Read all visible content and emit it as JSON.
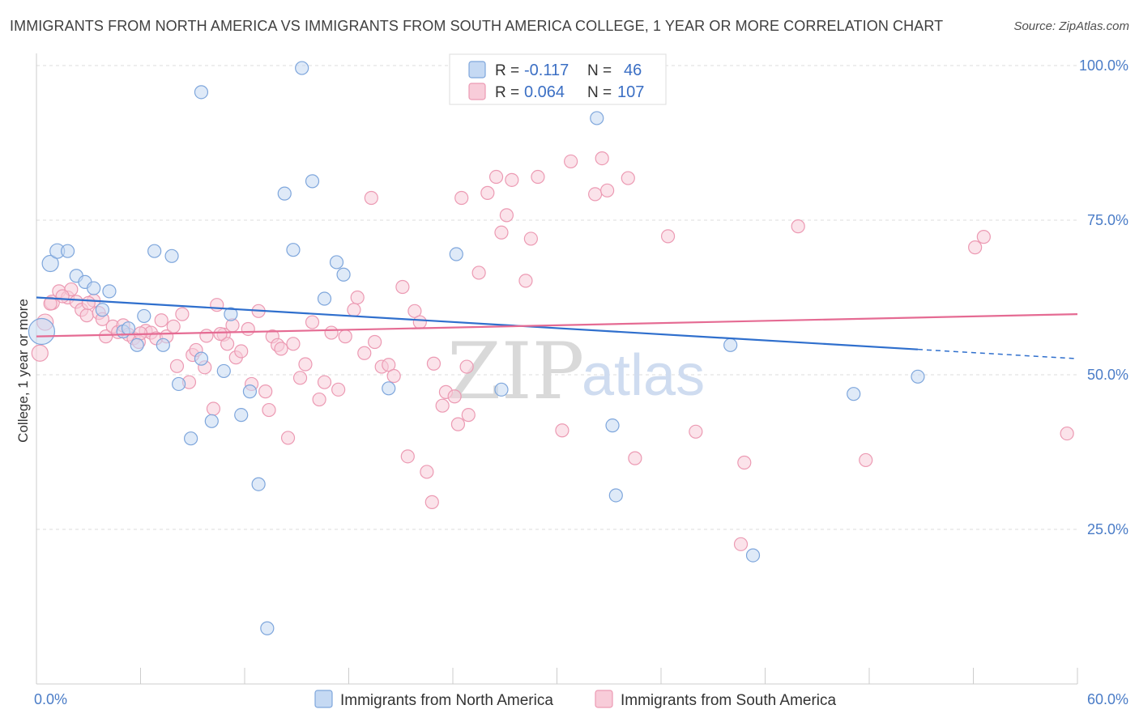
{
  "header": {
    "title": "IMMIGRANTS FROM NORTH AMERICA VS IMMIGRANTS FROM SOUTH AMERICA COLLEGE, 1 YEAR OR MORE CORRELATION CHART",
    "source": "Source: ZipAtlas.com"
  },
  "watermark": {
    "zip": "ZIP",
    "atlas": "atlas"
  },
  "colors": {
    "north_fill": "#c5d9f3",
    "north_stroke": "#7ea6dc",
    "north_line": "#2f6fcd",
    "south_fill": "#f8ccd9",
    "south_stroke": "#ec9ab3",
    "south_line": "#e56b93",
    "tick_label": "#4a7cc7",
    "grid": "#dedede"
  },
  "legend": {
    "rows": [
      {
        "r_label": "R =",
        "r_value": "-0.117",
        "n_label": "N =",
        "n_value": "46"
      },
      {
        "r_label": "R =",
        "r_value": "0.064",
        "n_label": "N =",
        "n_value": "107"
      }
    ]
  },
  "chart_data": {
    "type": "scatter",
    "title": "IMMIGRANTS FROM NORTH AMERICA VS IMMIGRANTS FROM SOUTH AMERICA COLLEGE, 1 YEAR OR MORE CORRELATION CHART",
    "xlabel": "",
    "ylabel": "College, 1 year or more",
    "xlim": [
      0,
      60
    ],
    "ylim": [
      0,
      102
    ],
    "x_tick_labels": [
      "0.0%",
      "60.0%"
    ],
    "y_ticks": [
      25,
      50,
      75,
      100
    ],
    "y_tick_labels": [
      "25.0%",
      "50.0%",
      "75.0%",
      "100.0%"
    ],
    "grid": true,
    "legend_position": "top-center",
    "series": [
      {
        "name": "Immigrants from North America",
        "r": -0.117,
        "n": 46,
        "trend": {
          "x": [
            0,
            50.8
          ],
          "y": [
            62.5,
            54.1
          ],
          "dashed_to": [
            60,
            52.6
          ]
        },
        "points": [
          [
            0.3,
            57.0,
            16
          ],
          [
            0.8,
            68.0,
            10
          ],
          [
            1.2,
            70.0,
            9
          ],
          [
            1.8,
            70.0,
            8
          ],
          [
            2.3,
            66.0,
            8
          ],
          [
            2.8,
            65.0,
            8
          ],
          [
            3.3,
            64.0,
            8
          ],
          [
            3.8,
            60.5,
            8
          ],
          [
            4.2,
            63.5,
            8
          ],
          [
            5.0,
            57.0,
            8
          ],
          [
            5.3,
            57.5,
            8
          ],
          [
            5.8,
            54.8,
            8
          ],
          [
            6.2,
            59.5,
            8
          ],
          [
            6.8,
            70.0,
            8
          ],
          [
            7.3,
            54.8,
            8
          ],
          [
            7.8,
            69.2,
            8
          ],
          [
            8.2,
            48.5,
            8
          ],
          [
            8.9,
            39.7,
            8
          ],
          [
            9.5,
            95.7,
            8
          ],
          [
            9.5,
            52.6,
            8
          ],
          [
            10.1,
            42.5,
            8
          ],
          [
            10.8,
            50.6,
            8
          ],
          [
            11.2,
            59.8,
            8
          ],
          [
            11.8,
            43.5,
            8
          ],
          [
            12.3,
            47.3,
            8
          ],
          [
            12.8,
            32.3,
            8
          ],
          [
            13.3,
            9.0,
            8
          ],
          [
            14.3,
            79.3,
            8
          ],
          [
            14.8,
            70.2,
            8
          ],
          [
            15.3,
            99.6,
            8
          ],
          [
            15.9,
            81.3,
            8
          ],
          [
            16.6,
            62.3,
            8
          ],
          [
            17.3,
            68.2,
            8
          ],
          [
            17.7,
            66.2,
            8
          ],
          [
            20.3,
            47.8,
            8
          ],
          [
            24.2,
            69.5,
            8
          ],
          [
            26.8,
            47.6,
            8
          ],
          [
            28.4,
            99.6,
            8
          ],
          [
            33.2,
            99.6,
            8
          ],
          [
            32.3,
            91.5,
            8
          ],
          [
            33.2,
            41.8,
            8
          ],
          [
            33.4,
            30.5,
            8
          ],
          [
            40.0,
            54.8,
            8
          ],
          [
            41.3,
            20.8,
            8
          ],
          [
            47.1,
            46.9,
            8
          ],
          [
            50.8,
            49.7,
            8
          ]
        ]
      },
      {
        "name": "Immigrants from South America",
        "r": 0.064,
        "n": 107,
        "trend": {
          "x": [
            0,
            60
          ],
          "y": [
            56.2,
            59.8
          ]
        },
        "points": [
          [
            0.2,
            53.5,
            10
          ],
          [
            0.5,
            58.5,
            10
          ],
          [
            0.9,
            61.7,
            9
          ],
          [
            1.3,
            63.5,
            8
          ],
          [
            1.8,
            62.5,
            8
          ],
          [
            2.0,
            63.8,
            8
          ],
          [
            2.3,
            61.8,
            8
          ],
          [
            2.6,
            60.5,
            8
          ],
          [
            2.9,
            59.6,
            8
          ],
          [
            3.3,
            62.0,
            8
          ],
          [
            3.6,
            60.0,
            8
          ],
          [
            3.8,
            59.0,
            8
          ],
          [
            4.0,
            56.2,
            8
          ],
          [
            4.4,
            57.8,
            8
          ],
          [
            4.7,
            56.9,
            8
          ],
          [
            5.0,
            58.0,
            8
          ],
          [
            5.3,
            56.5,
            8
          ],
          [
            5.6,
            55.9,
            8
          ],
          [
            5.9,
            55.3,
            8
          ],
          [
            6.3,
            57.1,
            8
          ],
          [
            6.6,
            56.8,
            8
          ],
          [
            6.9,
            55.9,
            8
          ],
          [
            7.2,
            58.8,
            8
          ],
          [
            7.5,
            56.2,
            8
          ],
          [
            7.9,
            57.8,
            8
          ],
          [
            8.1,
            51.4,
            8
          ],
          [
            8.4,
            59.8,
            8
          ],
          [
            8.8,
            48.8,
            8
          ],
          [
            9.0,
            53.2,
            8
          ],
          [
            9.2,
            54.0,
            8
          ],
          [
            9.7,
            51.2,
            8
          ],
          [
            9.8,
            56.3,
            8
          ],
          [
            10.2,
            44.5,
            8
          ],
          [
            10.4,
            61.3,
            8
          ],
          [
            10.8,
            56.5,
            8
          ],
          [
            11.0,
            55.0,
            8
          ],
          [
            11.3,
            58.0,
            8
          ],
          [
            11.5,
            52.8,
            8
          ],
          [
            11.8,
            53.8,
            8
          ],
          [
            12.2,
            57.4,
            8
          ],
          [
            12.4,
            48.5,
            8
          ],
          [
            12.8,
            60.3,
            8
          ],
          [
            13.2,
            47.3,
            8
          ],
          [
            13.4,
            44.3,
            8
          ],
          [
            13.6,
            56.2,
            8
          ],
          [
            13.9,
            54.8,
            8
          ],
          [
            14.1,
            54.2,
            8
          ],
          [
            14.5,
            39.8,
            8
          ],
          [
            14.8,
            55.0,
            8
          ],
          [
            15.2,
            49.5,
            8
          ],
          [
            15.5,
            51.7,
            8
          ],
          [
            15.9,
            58.5,
            8
          ],
          [
            16.3,
            46.0,
            8
          ],
          [
            16.6,
            48.8,
            8
          ],
          [
            17.0,
            56.8,
            8
          ],
          [
            17.4,
            47.6,
            8
          ],
          [
            17.8,
            56.2,
            8
          ],
          [
            18.3,
            60.5,
            8
          ],
          [
            18.5,
            62.5,
            8
          ],
          [
            18.9,
            53.5,
            8
          ],
          [
            19.3,
            78.6,
            8
          ],
          [
            19.5,
            55.3,
            8
          ],
          [
            19.9,
            51.3,
            8
          ],
          [
            20.3,
            51.6,
            8
          ],
          [
            20.6,
            49.8,
            8
          ],
          [
            21.1,
            64.2,
            8
          ],
          [
            21.4,
            36.8,
            8
          ],
          [
            21.8,
            60.3,
            8
          ],
          [
            22.1,
            58.5,
            8
          ],
          [
            22.5,
            34.3,
            8
          ],
          [
            22.8,
            29.4,
            8
          ],
          [
            22.9,
            51.8,
            8
          ],
          [
            23.4,
            45.0,
            8
          ],
          [
            23.6,
            47.2,
            8
          ],
          [
            24.1,
            46.5,
            8
          ],
          [
            24.3,
            42.0,
            8
          ],
          [
            24.5,
            78.6,
            8
          ],
          [
            24.8,
            51.3,
            8
          ],
          [
            24.9,
            43.5,
            8
          ],
          [
            25.5,
            66.5,
            8
          ],
          [
            26.0,
            79.4,
            8
          ],
          [
            26.5,
            82.0,
            8
          ],
          [
            26.8,
            73.0,
            8
          ],
          [
            27.1,
            75.8,
            8
          ],
          [
            27.4,
            81.5,
            8
          ],
          [
            28.2,
            65.2,
            8
          ],
          [
            28.5,
            72.0,
            8
          ],
          [
            28.9,
            82.0,
            8
          ],
          [
            30.3,
            41.0,
            8
          ],
          [
            30.8,
            84.5,
            8
          ],
          [
            32.2,
            79.2,
            8
          ],
          [
            32.6,
            85.0,
            8
          ],
          [
            32.9,
            79.8,
            8
          ],
          [
            34.1,
            81.8,
            8
          ],
          [
            34.5,
            36.5,
            8
          ],
          [
            36.4,
            72.4,
            8
          ],
          [
            38.0,
            40.8,
            8
          ],
          [
            40.6,
            22.6,
            8
          ],
          [
            40.8,
            35.8,
            8
          ],
          [
            43.9,
            74.0,
            8
          ],
          [
            47.8,
            36.2,
            8
          ],
          [
            54.1,
            70.6,
            8
          ],
          [
            54.6,
            72.3,
            8
          ],
          [
            59.4,
            40.5,
            8
          ],
          [
            0.8,
            61.5,
            8
          ],
          [
            1.5,
            62.7,
            8
          ],
          [
            3.0,
            61.6,
            8
          ],
          [
            6.0,
            56.7,
            8
          ],
          [
            10.6,
            56.6,
            8
          ]
        ]
      }
    ]
  }
}
